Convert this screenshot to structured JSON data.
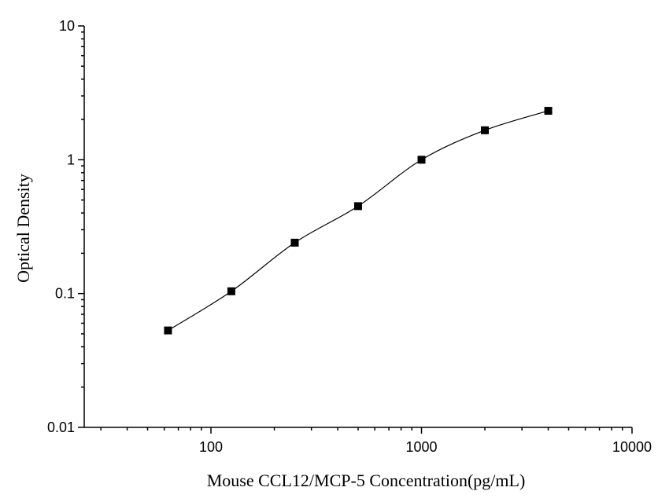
{
  "chart_data": {
    "type": "scatter",
    "xlabel": "Mouse CCL12/MCP-5 Concentration(pg/mL)",
    "ylabel": "Optical Density",
    "x_scale": "log",
    "y_scale": "log",
    "xlim": [
      25,
      10000
    ],
    "ylim": [
      0.01,
      10
    ],
    "x_ticks": [
      100,
      1000,
      10000
    ],
    "x_tick_labels": [
      "100",
      "1000",
      "10000"
    ],
    "y_ticks": [
      0.01,
      0.1,
      1,
      10
    ],
    "y_tick_labels": [
      "0.01",
      "0.1",
      "1",
      "10"
    ],
    "grid": false,
    "series": [
      {
        "marker": "square",
        "fit": "smooth-curve",
        "x": [
          62.5,
          125,
          250,
          500,
          1000,
          2000,
          4000
        ],
        "y": [
          0.053,
          0.104,
          0.24,
          0.45,
          1.0,
          1.66,
          2.32
        ]
      }
    ],
    "colors": {
      "marker": "#000000",
      "curve": "#000000",
      "axis": "#000000"
    }
  }
}
